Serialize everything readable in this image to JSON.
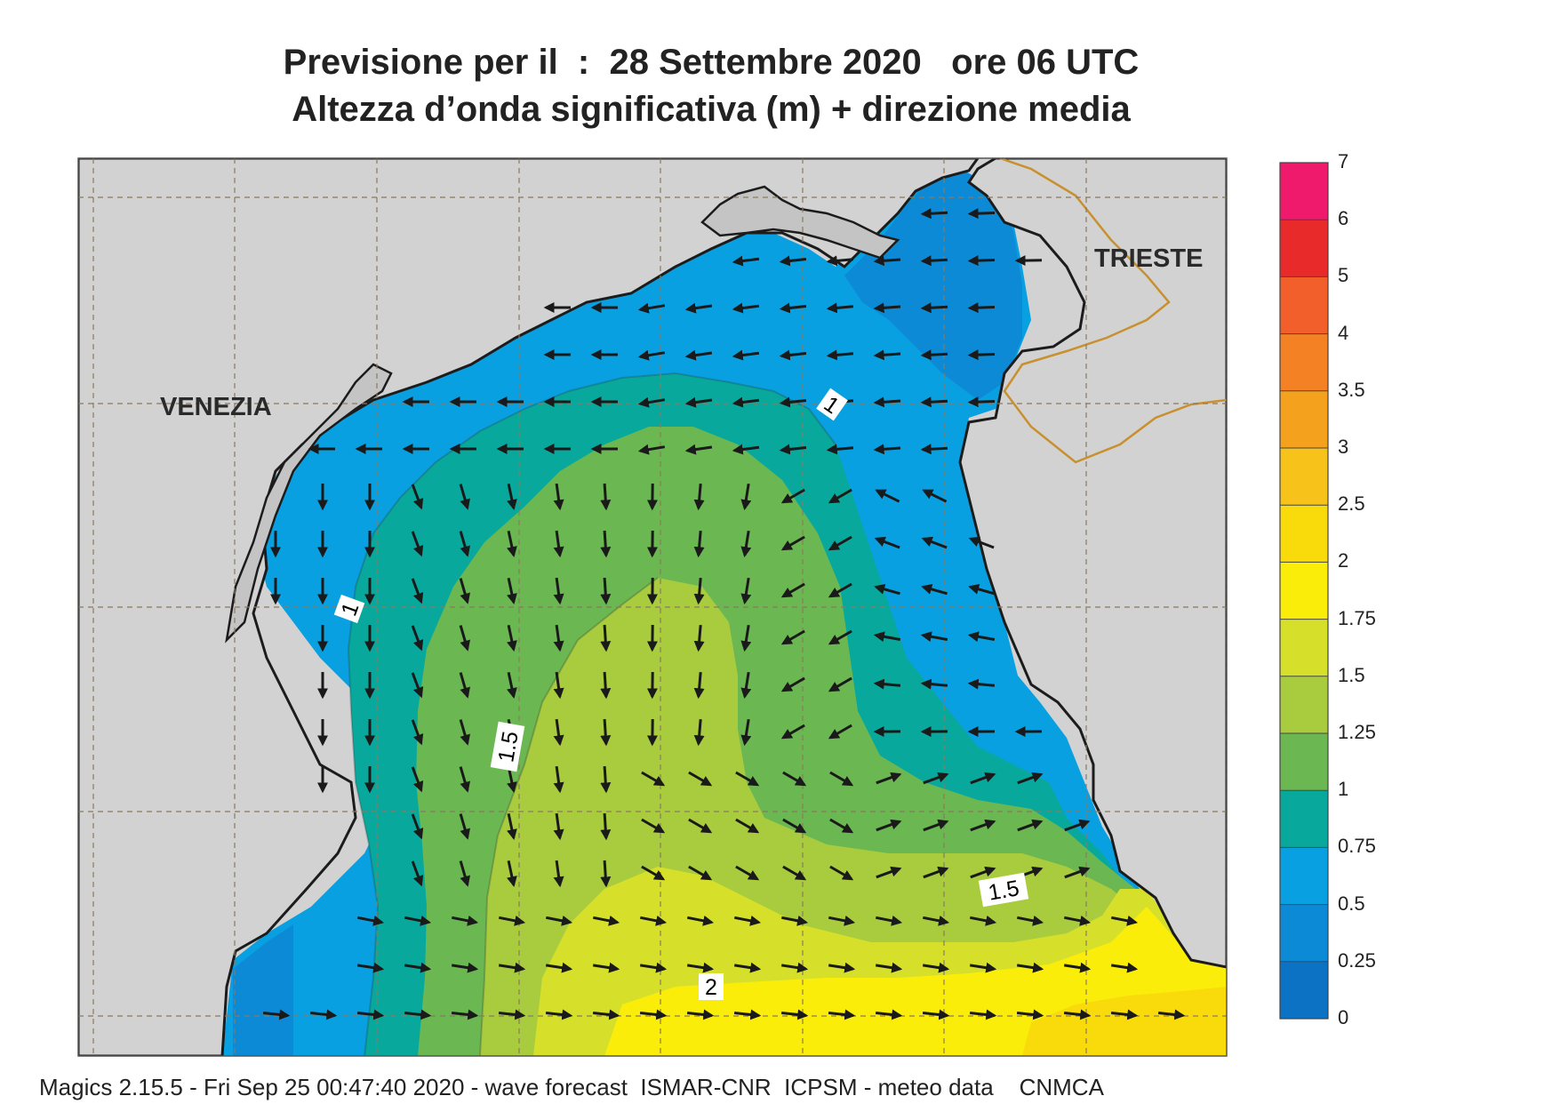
{
  "title": {
    "line1": "Previsione per il  :  28 Settembre 2020   ore 06 UTC",
    "line2": "Altezza d’onda significativa (m) + direzione media"
  },
  "cities": {
    "venezia": "VENEZIA",
    "trieste": "TRIESTE"
  },
  "contour_labels": [
    "1",
    "1",
    "1.5",
    "1.5",
    "2"
  ],
  "colorbar": {
    "labels": [
      "7",
      "6",
      "5",
      "4",
      "3.5",
      "3",
      "2.5",
      "2",
      "1.75",
      "1.5",
      "1.25",
      "1",
      "0.75",
      "0.5",
      "0.25",
      "0"
    ],
    "colors": [
      "#f01a6c",
      "#e82a2a",
      "#f25f2a",
      "#f48224",
      "#f4a21e",
      "#f7c31a",
      "#f9db0c",
      "#fbed0a",
      "#d6e02a",
      "#a8cc3e",
      "#6bb752",
      "#08a99c",
      "#08a0e0",
      "#0d8ad6",
      "#0c73c4",
      "#0a5eb4"
    ]
  },
  "colors": {
    "land": "#d2d2d2",
    "coast": "#1c1c1c",
    "border": "#c8902e"
  },
  "footer": "Magics 2.15.5 - Fri Sep 25 00:47:40 2020 - wave forecast  ISMAR-CNR  ICPSM - meteo data    CNMCA"
}
